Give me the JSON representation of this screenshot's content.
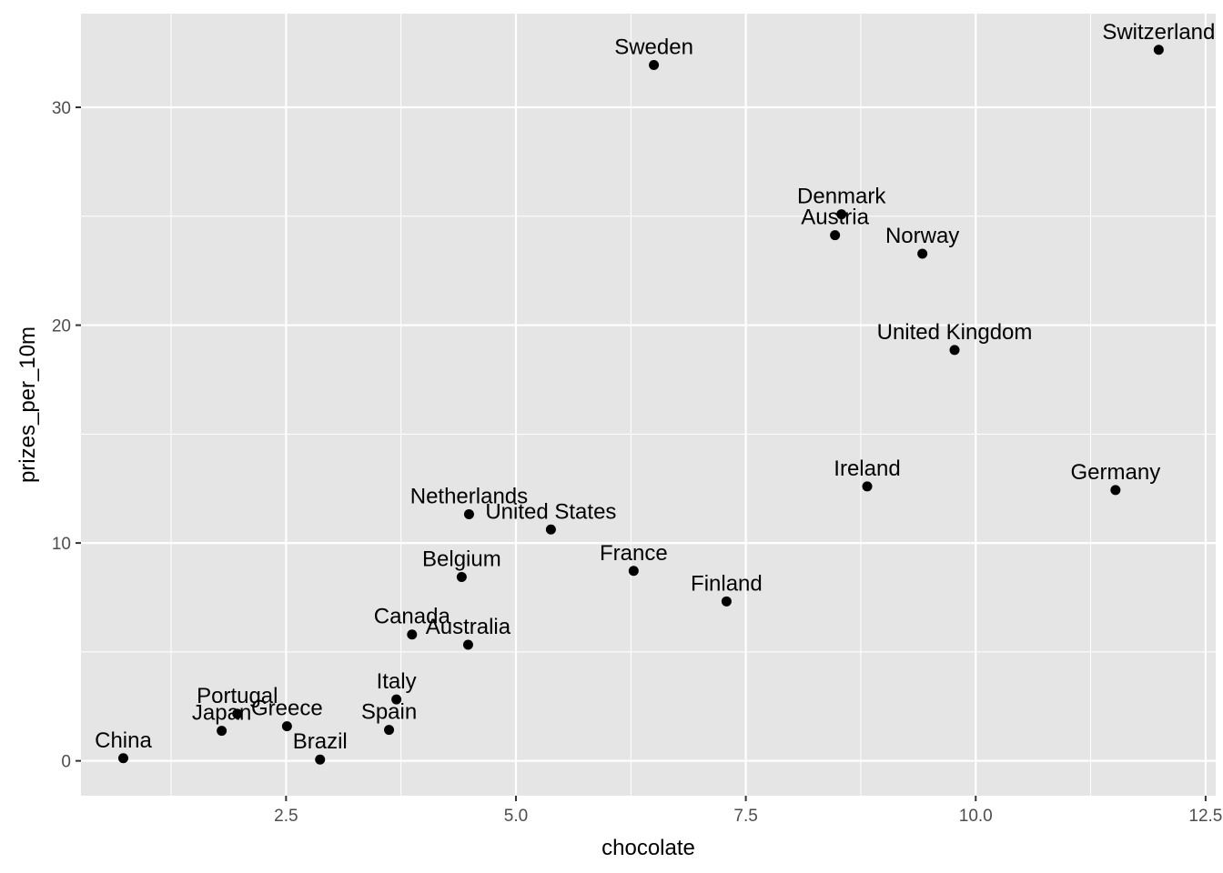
{
  "chart_data": {
    "type": "scatter",
    "xlabel": "chocolate",
    "ylabel": "prizes_per_10m",
    "xlim": [
      0.27,
      12.61
    ],
    "ylim": [
      -1.6,
      34.3
    ],
    "x_ticks": [
      2.5,
      5.0,
      7.5,
      10.0,
      12.5
    ],
    "x_tick_labels": [
      "2.5",
      "5.0",
      "7.5",
      "10.0",
      "12.5"
    ],
    "y_ticks": [
      0,
      10,
      20,
      30
    ],
    "y_tick_labels": [
      "0",
      "10",
      "20",
      "30"
    ],
    "grid": true,
    "panel_background": "#e5e5e5",
    "grid_color": "#ffffff",
    "point_color": "#000000",
    "points": [
      {
        "label": "Switzerland",
        "x": 11.99,
        "y": 32.64
      },
      {
        "label": "Sweden",
        "x": 6.5,
        "y": 31.94
      },
      {
        "label": "Denmark",
        "x": 8.54,
        "y": 25.09
      },
      {
        "label": "Austria",
        "x": 8.47,
        "y": 24.13
      },
      {
        "label": "Norway",
        "x": 9.42,
        "y": 23.28
      },
      {
        "label": "United Kingdom",
        "x": 9.77,
        "y": 18.86
      },
      {
        "label": "Ireland",
        "x": 8.82,
        "y": 12.6
      },
      {
        "label": "Germany",
        "x": 11.52,
        "y": 12.43
      },
      {
        "label": "Netherlands",
        "x": 4.49,
        "y": 11.32
      },
      {
        "label": "United States",
        "x": 5.38,
        "y": 10.62
      },
      {
        "label": "France",
        "x": 6.28,
        "y": 8.72
      },
      {
        "label": "Belgium",
        "x": 4.41,
        "y": 8.44
      },
      {
        "label": "Finland",
        "x": 7.29,
        "y": 7.32
      },
      {
        "label": "Canada",
        "x": 3.87,
        "y": 5.8
      },
      {
        "label": "Australia",
        "x": 4.48,
        "y": 5.33
      },
      {
        "label": "Italy",
        "x": 3.7,
        "y": 2.82
      },
      {
        "label": "Portugal",
        "x": 1.97,
        "y": 2.16
      },
      {
        "label": "Greece",
        "x": 2.51,
        "y": 1.59
      },
      {
        "label": "Spain",
        "x": 3.62,
        "y": 1.42
      },
      {
        "label": "Japan",
        "x": 1.8,
        "y": 1.38
      },
      {
        "label": "China",
        "x": 0.73,
        "y": 0.12
      },
      {
        "label": "Brazil",
        "x": 2.87,
        "y": 0.06
      }
    ]
  }
}
